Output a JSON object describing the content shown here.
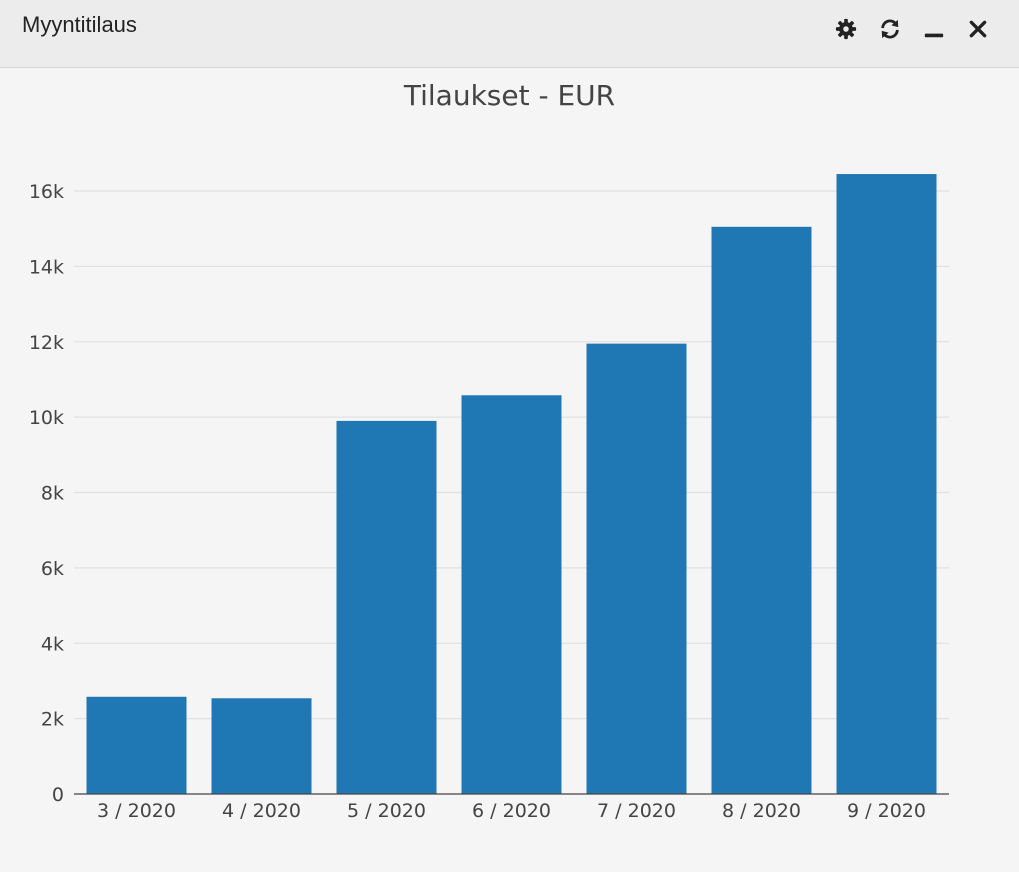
{
  "window": {
    "title": "Myyntitilaus",
    "controls": [
      {
        "name": "settings",
        "icon": "gear-icon"
      },
      {
        "name": "refresh",
        "icon": "refresh-icon"
      },
      {
        "name": "minimize",
        "icon": "minimize-icon"
      },
      {
        "name": "close",
        "icon": "close-icon"
      }
    ]
  },
  "chart_data": {
    "type": "bar",
    "title": "Tilaukset - EUR",
    "categories": [
      "3 / 2020",
      "4 / 2020",
      "5 / 2020",
      "6 / 2020",
      "7 / 2020",
      "8 / 2020",
      "9 / 2020"
    ],
    "values": [
      2580,
      2540,
      9900,
      10580,
      11950,
      15050,
      16450
    ],
    "xlabel": "",
    "ylabel": "",
    "ylim": [
      0,
      16000
    ],
    "yticks": [
      0,
      2000,
      4000,
      6000,
      8000,
      10000,
      12000,
      14000,
      16000
    ],
    "ytick_labels": [
      "0",
      "2k",
      "4k",
      "6k",
      "8k",
      "10k",
      "12k",
      "14k",
      "16k"
    ],
    "grid": true,
    "legend": "none",
    "bar_color": "#1f77b4"
  }
}
